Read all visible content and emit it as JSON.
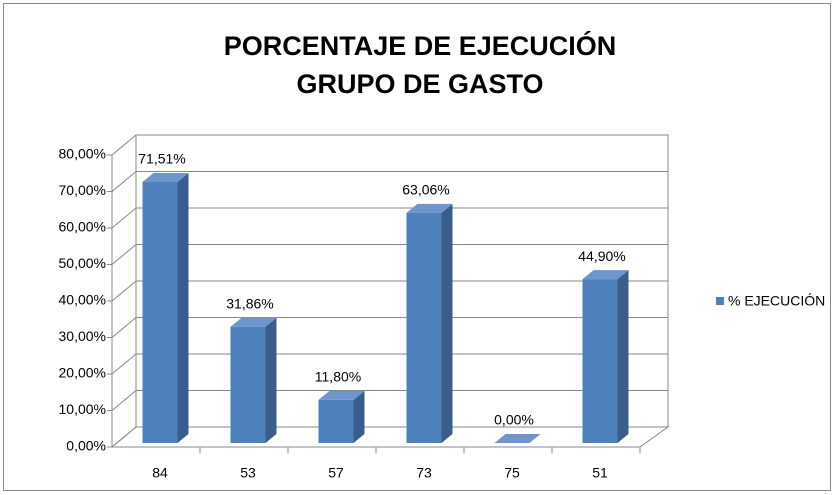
{
  "chart_data": {
    "type": "bar3d",
    "title": [
      "PORCENTAJE DE EJECUCIÓN",
      "GRUPO DE GASTO"
    ],
    "categories": [
      "84",
      "53",
      "57",
      "73",
      "75",
      "51"
    ],
    "series": [
      {
        "name": "% EJECUCIÓN",
        "color": "#4f81bd",
        "values": [
          71.51,
          31.86,
          11.8,
          63.06,
          0,
          44.9
        ],
        "value_labels": [
          "71,51%",
          "31,86%",
          "11,80%",
          "63,06%",
          "0,00%",
          "44,90%"
        ]
      }
    ],
    "ylim": [
      0,
      80
    ],
    "yticks": [
      {
        "value": 0,
        "label": "0,00%"
      },
      {
        "value": 10,
        "label": "10,00%"
      },
      {
        "value": 20,
        "label": "20,00%"
      },
      {
        "value": 30,
        "label": "30,00%"
      },
      {
        "value": 40,
        "label": "40,00%"
      },
      {
        "value": 50,
        "label": "50,00%"
      },
      {
        "value": 60,
        "label": "60,00%"
      },
      {
        "value": 70,
        "label": "70,00%"
      },
      {
        "value": 80,
        "label": "80,00%"
      }
    ],
    "grid": true,
    "legend": "right"
  }
}
